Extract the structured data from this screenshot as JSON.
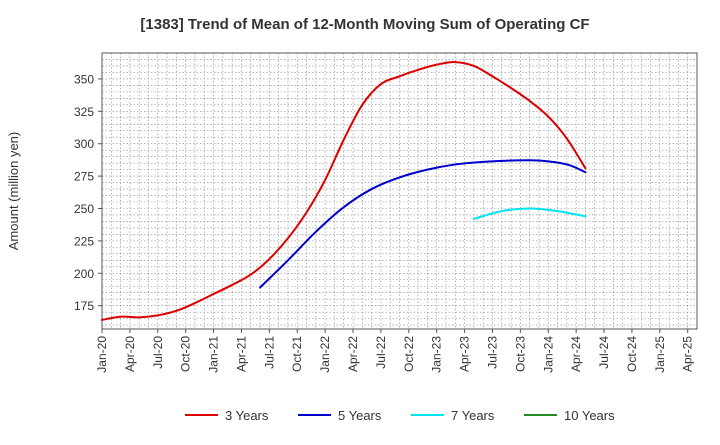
{
  "chart_data": {
    "type": "line",
    "title": "[1383]  Trend of Mean of 12-Month Moving Sum of Operating CF",
    "xlabel": "",
    "ylabel": "Amount (million yen)",
    "ylim": [
      157,
      370
    ],
    "yticks": [
      175,
      200,
      225,
      250,
      275,
      300,
      325,
      350
    ],
    "x_tick_labels": [
      "Jan-20",
      "Apr-20",
      "Jul-20",
      "Oct-20",
      "Jan-21",
      "Apr-21",
      "Jul-21",
      "Oct-21",
      "Jan-22",
      "Apr-22",
      "Jul-22",
      "Oct-22",
      "Jan-23",
      "Apr-23",
      "Jul-23",
      "Oct-23",
      "Jan-24",
      "Apr-24",
      "Jul-24",
      "Oct-24",
      "Jan-25",
      "Apr-25"
    ],
    "x_range_months": [
      0,
      64
    ],
    "grid": true,
    "legend_position": "bottom",
    "series": [
      {
        "name": "3 Years",
        "color": "#dd0000",
        "points": [
          [
            0,
            164
          ],
          [
            2,
            166.5
          ],
          [
            4,
            166
          ],
          [
            6,
            167.5
          ],
          [
            8,
            171
          ],
          [
            10,
            177
          ],
          [
            12,
            184
          ],
          [
            14,
            191
          ],
          [
            16,
            199
          ],
          [
            18,
            211
          ],
          [
            20,
            227
          ],
          [
            22,
            247
          ],
          [
            24,
            272
          ],
          [
            26,
            303
          ],
          [
            28,
            330
          ],
          [
            30,
            346
          ],
          [
            32,
            352
          ],
          [
            34,
            357
          ],
          [
            36,
            361
          ],
          [
            38,
            363
          ],
          [
            40,
            360
          ],
          [
            42,
            352
          ],
          [
            44,
            343
          ],
          [
            46,
            333
          ],
          [
            48,
            321
          ],
          [
            50,
            304
          ],
          [
            52,
            281
          ]
        ]
      },
      {
        "name": "5 Years",
        "color": "#0000cc",
        "points": [
          [
            17,
            189
          ],
          [
            20,
            210
          ],
          [
            23,
            232
          ],
          [
            26,
            251
          ],
          [
            29,
            265
          ],
          [
            32,
            274
          ],
          [
            35,
            280
          ],
          [
            38,
            284
          ],
          [
            41,
            286
          ],
          [
            44,
            287
          ],
          [
            47,
            287
          ],
          [
            50,
            284
          ],
          [
            52,
            278
          ]
        ]
      },
      {
        "name": "7 Years",
        "color": "#00e5ee",
        "points": [
          [
            40,
            242
          ],
          [
            43,
            248
          ],
          [
            46,
            250
          ],
          [
            49,
            248
          ],
          [
            52,
            244
          ]
        ]
      },
      {
        "name": "10 Years",
        "color": "#228b22",
        "points": []
      }
    ]
  }
}
